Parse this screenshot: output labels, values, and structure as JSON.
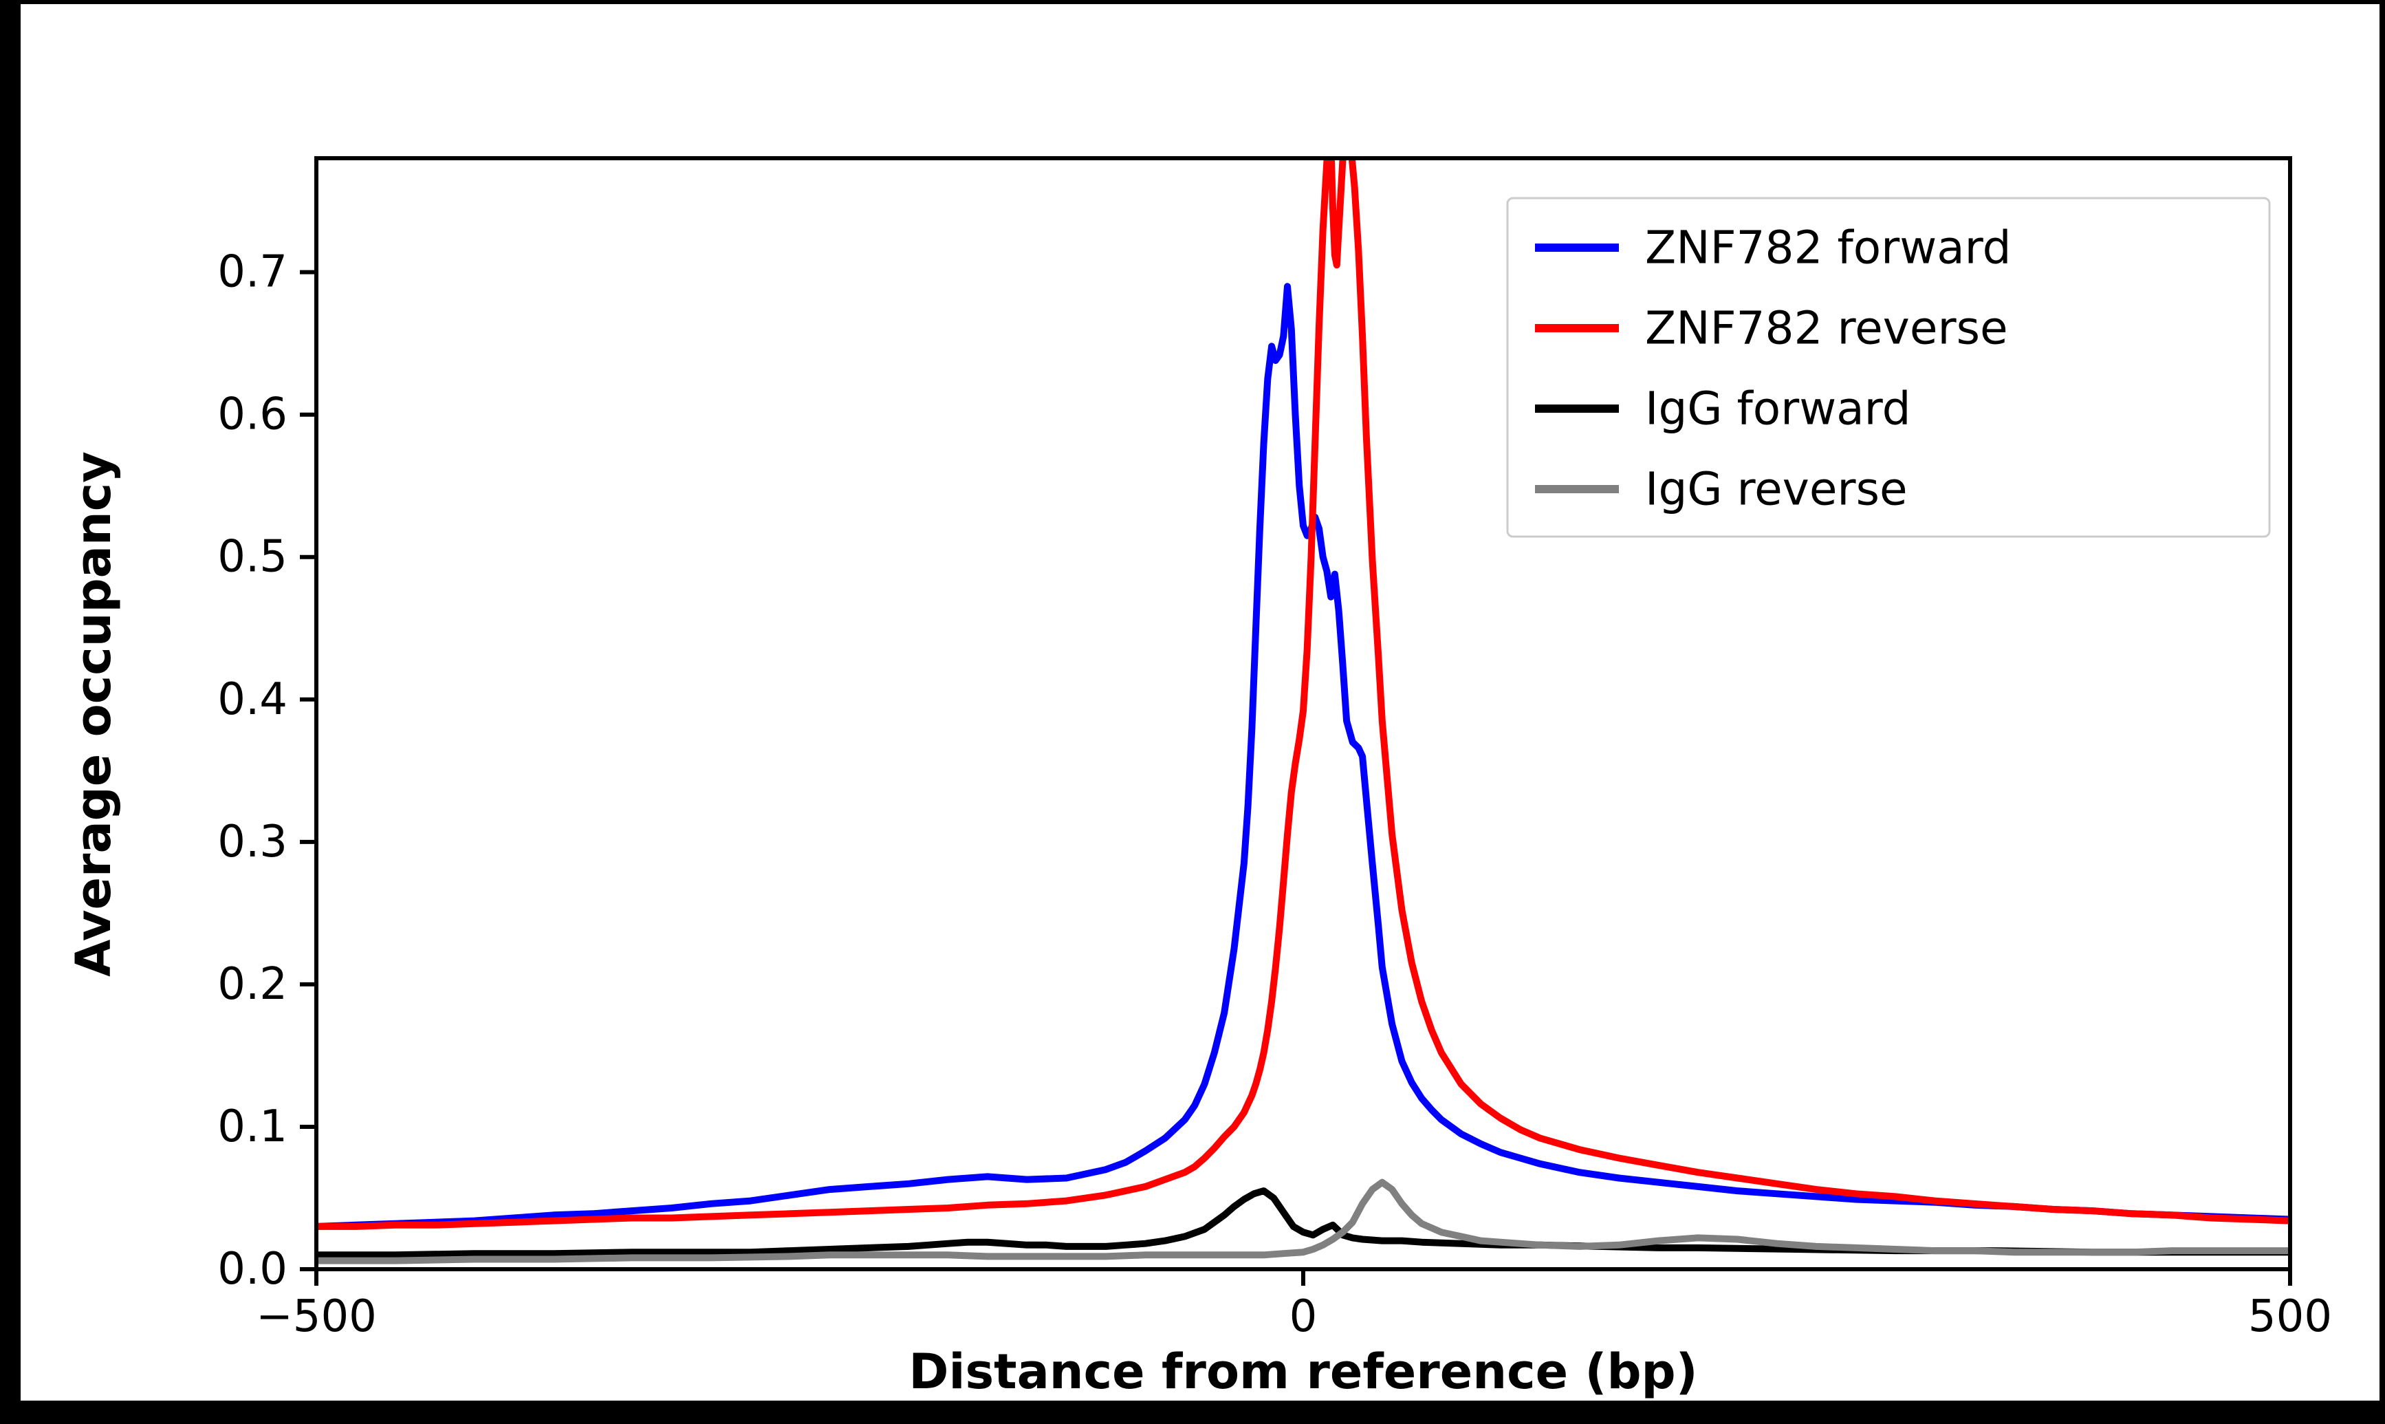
{
  "figure": {
    "background": "#ffffff",
    "frame_color": "#000000",
    "axis_color": "#000000",
    "legend_border_color": "#cccccc",
    "legend_background": "#ffffff"
  },
  "chart_data": {
    "type": "line",
    "title": "",
    "xlabel": "Distance from reference (bp)",
    "ylabel": "Average occupancy",
    "xlim": [
      -500,
      500
    ],
    "ylim": [
      0,
      0.78
    ],
    "xticks": [
      -500,
      0,
      500
    ],
    "xtick_labels": [
      "−500",
      "0",
      "500"
    ],
    "yticks": [
      0.0,
      0.1,
      0.2,
      0.3,
      0.4,
      0.5,
      0.6,
      0.7
    ],
    "ytick_labels": [
      "0.0",
      "0.1",
      "0.2",
      "0.3",
      "0.4",
      "0.5",
      "0.6",
      "0.7"
    ],
    "grid": false,
    "legend": {
      "position": "upper right"
    },
    "series": [
      {
        "name": "ZNF782 forward",
        "color": "#0000ff",
        "points": [
          [
            -500,
            0.03
          ],
          [
            -480,
            0.031
          ],
          [
            -460,
            0.032
          ],
          [
            -440,
            0.033
          ],
          [
            -420,
            0.034
          ],
          [
            -400,
            0.036
          ],
          [
            -380,
            0.038
          ],
          [
            -360,
            0.039
          ],
          [
            -340,
            0.041
          ],
          [
            -320,
            0.043
          ],
          [
            -300,
            0.046
          ],
          [
            -280,
            0.048
          ],
          [
            -260,
            0.052
          ],
          [
            -240,
            0.056
          ],
          [
            -220,
            0.058
          ],
          [
            -200,
            0.06
          ],
          [
            -180,
            0.063
          ],
          [
            -160,
            0.065
          ],
          [
            -140,
            0.063
          ],
          [
            -120,
            0.064
          ],
          [
            -100,
            0.07
          ],
          [
            -90,
            0.075
          ],
          [
            -80,
            0.083
          ],
          [
            -70,
            0.092
          ],
          [
            -60,
            0.105
          ],
          [
            -55,
            0.115
          ],
          [
            -50,
            0.13
          ],
          [
            -45,
            0.152
          ],
          [
            -40,
            0.18
          ],
          [
            -35,
            0.225
          ],
          [
            -30,
            0.285
          ],
          [
            -28,
            0.325
          ],
          [
            -26,
            0.38
          ],
          [
            -24,
            0.45
          ],
          [
            -22,
            0.52
          ],
          [
            -20,
            0.58
          ],
          [
            -18,
            0.625
          ],
          [
            -16,
            0.648
          ],
          [
            -14,
            0.638
          ],
          [
            -12,
            0.642
          ],
          [
            -10,
            0.655
          ],
          [
            -8,
            0.69
          ],
          [
            -6,
            0.66
          ],
          [
            -4,
            0.6
          ],
          [
            -2,
            0.55
          ],
          [
            0,
            0.522
          ],
          [
            2,
            0.515
          ],
          [
            4,
            0.52
          ],
          [
            6,
            0.528
          ],
          [
            8,
            0.52
          ],
          [
            10,
            0.5
          ],
          [
            12,
            0.49
          ],
          [
            14,
            0.472
          ],
          [
            16,
            0.488
          ],
          [
            18,
            0.462
          ],
          [
            20,
            0.425
          ],
          [
            22,
            0.385
          ],
          [
            25,
            0.37
          ],
          [
            28,
            0.366
          ],
          [
            30,
            0.36
          ],
          [
            32,
            0.33
          ],
          [
            35,
            0.285
          ],
          [
            38,
            0.242
          ],
          [
            40,
            0.212
          ],
          [
            45,
            0.172
          ],
          [
            50,
            0.146
          ],
          [
            55,
            0.131
          ],
          [
            60,
            0.12
          ],
          [
            65,
            0.112
          ],
          [
            70,
            0.105
          ],
          [
            80,
            0.095
          ],
          [
            90,
            0.088
          ],
          [
            100,
            0.082
          ],
          [
            110,
            0.078
          ],
          [
            120,
            0.074
          ],
          [
            140,
            0.068
          ],
          [
            160,
            0.064
          ],
          [
            180,
            0.061
          ],
          [
            200,
            0.058
          ],
          [
            220,
            0.055
          ],
          [
            240,
            0.053
          ],
          [
            260,
            0.051
          ],
          [
            280,
            0.049
          ],
          [
            300,
            0.048
          ],
          [
            320,
            0.047
          ],
          [
            340,
            0.045
          ],
          [
            360,
            0.044
          ],
          [
            380,
            0.042
          ],
          [
            400,
            0.041
          ],
          [
            420,
            0.039
          ],
          [
            440,
            0.038
          ],
          [
            460,
            0.037
          ],
          [
            480,
            0.036
          ],
          [
            500,
            0.035
          ]
        ]
      },
      {
        "name": "ZNF782 reverse",
        "color": "#ff0000",
        "points": [
          [
            -500,
            0.03
          ],
          [
            -480,
            0.03
          ],
          [
            -460,
            0.031
          ],
          [
            -440,
            0.031
          ],
          [
            -420,
            0.032
          ],
          [
            -400,
            0.033
          ],
          [
            -380,
            0.034
          ],
          [
            -360,
            0.035
          ],
          [
            -340,
            0.036
          ],
          [
            -320,
            0.036
          ],
          [
            -300,
            0.037
          ],
          [
            -280,
            0.038
          ],
          [
            -260,
            0.039
          ],
          [
            -240,
            0.04
          ],
          [
            -220,
            0.041
          ],
          [
            -200,
            0.042
          ],
          [
            -180,
            0.043
          ],
          [
            -160,
            0.045
          ],
          [
            -140,
            0.046
          ],
          [
            -120,
            0.048
          ],
          [
            -100,
            0.052
          ],
          [
            -90,
            0.055
          ],
          [
            -80,
            0.058
          ],
          [
            -70,
            0.063
          ],
          [
            -60,
            0.068
          ],
          [
            -55,
            0.072
          ],
          [
            -50,
            0.078
          ],
          [
            -45,
            0.085
          ],
          [
            -40,
            0.093
          ],
          [
            -35,
            0.1
          ],
          [
            -30,
            0.11
          ],
          [
            -28,
            0.116
          ],
          [
            -26,
            0.122
          ],
          [
            -24,
            0.13
          ],
          [
            -22,
            0.14
          ],
          [
            -20,
            0.152
          ],
          [
            -18,
            0.168
          ],
          [
            -16,
            0.188
          ],
          [
            -14,
            0.212
          ],
          [
            -12,
            0.24
          ],
          [
            -10,
            0.272
          ],
          [
            -8,
            0.305
          ],
          [
            -6,
            0.335
          ],
          [
            -4,
            0.355
          ],
          [
            -2,
            0.372
          ],
          [
            0,
            0.392
          ],
          [
            2,
            0.435
          ],
          [
            4,
            0.5
          ],
          [
            6,
            0.58
          ],
          [
            8,
            0.662
          ],
          [
            10,
            0.73
          ],
          [
            12,
            0.778
          ],
          [
            13,
            0.8
          ],
          [
            14,
            0.792
          ],
          [
            15,
            0.745
          ],
          [
            16,
            0.712
          ],
          [
            17,
            0.705
          ],
          [
            18,
            0.73
          ],
          [
            20,
            0.778
          ],
          [
            22,
            0.8
          ],
          [
            24,
            0.79
          ],
          [
            26,
            0.76
          ],
          [
            28,
            0.715
          ],
          [
            30,
            0.655
          ],
          [
            32,
            0.585
          ],
          [
            35,
            0.498
          ],
          [
            38,
            0.432
          ],
          [
            40,
            0.385
          ],
          [
            45,
            0.305
          ],
          [
            50,
            0.252
          ],
          [
            55,
            0.215
          ],
          [
            60,
            0.188
          ],
          [
            65,
            0.168
          ],
          [
            70,
            0.152
          ],
          [
            80,
            0.13
          ],
          [
            90,
            0.116
          ],
          [
            100,
            0.106
          ],
          [
            110,
            0.098
          ],
          [
            120,
            0.092
          ],
          [
            140,
            0.084
          ],
          [
            160,
            0.078
          ],
          [
            180,
            0.073
          ],
          [
            200,
            0.068
          ],
          [
            220,
            0.064
          ],
          [
            240,
            0.06
          ],
          [
            260,
            0.056
          ],
          [
            280,
            0.053
          ],
          [
            300,
            0.051
          ],
          [
            320,
            0.048
          ],
          [
            340,
            0.046
          ],
          [
            360,
            0.044
          ],
          [
            380,
            0.042
          ],
          [
            400,
            0.041
          ],
          [
            420,
            0.039
          ],
          [
            440,
            0.038
          ],
          [
            460,
            0.036
          ],
          [
            480,
            0.035
          ],
          [
            500,
            0.034
          ]
        ]
      },
      {
        "name": "IgG forward",
        "color": "#000000",
        "points": [
          [
            -500,
            0.01
          ],
          [
            -460,
            0.01
          ],
          [
            -420,
            0.011
          ],
          [
            -380,
            0.011
          ],
          [
            -340,
            0.012
          ],
          [
            -300,
            0.012
          ],
          [
            -280,
            0.012
          ],
          [
            -260,
            0.013
          ],
          [
            -240,
            0.014
          ],
          [
            -220,
            0.015
          ],
          [
            -200,
            0.016
          ],
          [
            -190,
            0.017
          ],
          [
            -180,
            0.018
          ],
          [
            -170,
            0.019
          ],
          [
            -160,
            0.019
          ],
          [
            -150,
            0.018
          ],
          [
            -140,
            0.017
          ],
          [
            -130,
            0.017
          ],
          [
            -120,
            0.016
          ],
          [
            -110,
            0.016
          ],
          [
            -100,
            0.016
          ],
          [
            -90,
            0.017
          ],
          [
            -80,
            0.018
          ],
          [
            -70,
            0.02
          ],
          [
            -60,
            0.023
          ],
          [
            -50,
            0.028
          ],
          [
            -45,
            0.033
          ],
          [
            -40,
            0.038
          ],
          [
            -35,
            0.044
          ],
          [
            -30,
            0.049
          ],
          [
            -25,
            0.053
          ],
          [
            -20,
            0.055
          ],
          [
            -15,
            0.05
          ],
          [
            -10,
            0.04
          ],
          [
            -5,
            0.03
          ],
          [
            0,
            0.026
          ],
          [
            5,
            0.024
          ],
          [
            10,
            0.028
          ],
          [
            15,
            0.031
          ],
          [
            18,
            0.027
          ],
          [
            20,
            0.024
          ],
          [
            25,
            0.022
          ],
          [
            30,
            0.021
          ],
          [
            40,
            0.02
          ],
          [
            50,
            0.02
          ],
          [
            60,
            0.019
          ],
          [
            80,
            0.018
          ],
          [
            100,
            0.017
          ],
          [
            120,
            0.017
          ],
          [
            150,
            0.016
          ],
          [
            180,
            0.015
          ],
          [
            200,
            0.015
          ],
          [
            250,
            0.014
          ],
          [
            300,
            0.013
          ],
          [
            350,
            0.013
          ],
          [
            400,
            0.012
          ],
          [
            450,
            0.012
          ],
          [
            500,
            0.012
          ]
        ]
      },
      {
        "name": "IgG reverse",
        "color": "#808080",
        "points": [
          [
            -500,
            0.006
          ],
          [
            -460,
            0.006
          ],
          [
            -420,
            0.007
          ],
          [
            -380,
            0.007
          ],
          [
            -340,
            0.008
          ],
          [
            -300,
            0.008
          ],
          [
            -260,
            0.009
          ],
          [
            -240,
            0.01
          ],
          [
            -220,
            0.01
          ],
          [
            -200,
            0.01
          ],
          [
            -180,
            0.01
          ],
          [
            -160,
            0.009
          ],
          [
            -140,
            0.009
          ],
          [
            -120,
            0.009
          ],
          [
            -100,
            0.009
          ],
          [
            -80,
            0.01
          ],
          [
            -60,
            0.01
          ],
          [
            -40,
            0.01
          ],
          [
            -30,
            0.01
          ],
          [
            -20,
            0.01
          ],
          [
            -10,
            0.011
          ],
          [
            0,
            0.012
          ],
          [
            5,
            0.014
          ],
          [
            10,
            0.017
          ],
          [
            15,
            0.021
          ],
          [
            20,
            0.026
          ],
          [
            25,
            0.033
          ],
          [
            30,
            0.046
          ],
          [
            35,
            0.056
          ],
          [
            40,
            0.061
          ],
          [
            45,
            0.056
          ],
          [
            50,
            0.046
          ],
          [
            55,
            0.038
          ],
          [
            60,
            0.032
          ],
          [
            70,
            0.026
          ],
          [
            80,
            0.023
          ],
          [
            90,
            0.02
          ],
          [
            100,
            0.019
          ],
          [
            120,
            0.017
          ],
          [
            140,
            0.016
          ],
          [
            160,
            0.017
          ],
          [
            180,
            0.02
          ],
          [
            200,
            0.022
          ],
          [
            220,
            0.021
          ],
          [
            240,
            0.018
          ],
          [
            260,
            0.016
          ],
          [
            280,
            0.015
          ],
          [
            300,
            0.014
          ],
          [
            320,
            0.013
          ],
          [
            340,
            0.013
          ],
          [
            360,
            0.012
          ],
          [
            380,
            0.012
          ],
          [
            400,
            0.012
          ],
          [
            420,
            0.012
          ],
          [
            440,
            0.013
          ],
          [
            460,
            0.013
          ],
          [
            480,
            0.013
          ],
          [
            500,
            0.013
          ]
        ]
      }
    ]
  }
}
